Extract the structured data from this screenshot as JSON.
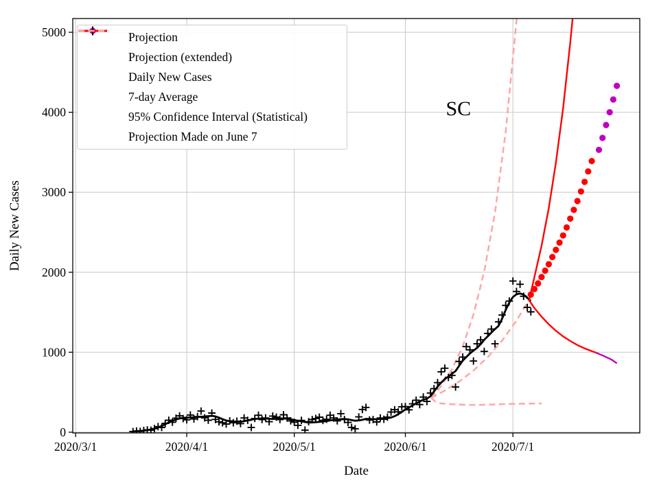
{
  "chart_data": {
    "type": "line",
    "annotation": {
      "text": "SC",
      "day": 106.8,
      "value": 4050
    },
    "x_axis": {
      "label": "Date",
      "min_day": -0.8,
      "max_day": 157.4,
      "day0_date": "2020-03-01",
      "ticks": [
        {
          "day": 0,
          "label": "2020/3/1"
        },
        {
          "day": 31,
          "label": "2020/4/1"
        },
        {
          "day": 61,
          "label": "2020/5/1"
        },
        {
          "day": 92,
          "label": "2020/6/1"
        },
        {
          "day": 122,
          "label": "2020/7/1"
        }
      ]
    },
    "y_axis": {
      "label": "Daily New Cases",
      "min": -9,
      "max": 5172,
      "ticks": [
        0,
        1000,
        2000,
        3000,
        4000,
        5000
      ]
    },
    "grid": true,
    "series": {
      "daily_new_cases": {
        "name": "Daily New Cases",
        "marker": "plus",
        "color": "#000000",
        "start_date": "2020-03-17",
        "start_day": 16,
        "values": [
          8,
          14,
          10,
          22,
          30,
          25,
          45,
          70,
          60,
          110,
          150,
          125,
          175,
          205,
          170,
          155,
          215,
          165,
          195,
          265,
          180,
          150,
          240,
          160,
          130,
          118,
          102,
          142,
          118,
          138,
          108,
          178,
          148,
          60,
          172,
          212,
          158,
          178,
          132,
          202,
          188,
          158,
          218,
          178,
          142,
          125,
          86,
          148,
          26,
          132,
          158,
          172,
          188,
          148,
          162,
          212,
          178,
          142,
          232,
          158,
          122,
          60,
          43,
          192,
          284,
          310,
          152,
          158,
          128,
          178,
          162,
          188,
          252,
          282,
          255,
          318,
          320,
          280,
          355,
          400,
          345,
          440,
          385,
          490,
          545,
          620,
          755,
          800,
          685,
          710,
          565,
          885,
          940,
          1070,
          1030,
          890,
          1105,
          1155,
          1010,
          1235,
          1290,
          1105,
          1380,
          1465,
          1585,
          1640,
          1890,
          1760,
          1850,
          1700,
          1560,
          1505
        ]
      },
      "avg_7day": {
        "name": "7-day Average",
        "style": "solid-line",
        "color": "#000000",
        "start_date": "2020-03-17",
        "start_day": 16,
        "values": [
          10,
          13,
          16,
          20,
          26,
          34,
          45,
          60,
          78,
          100,
          122,
          142,
          160,
          172,
          180,
          182,
          184,
          186,
          189,
          193,
          197,
          201,
          205,
          198,
          182,
          163,
          147,
          136,
          130,
          128,
          131,
          138,
          148,
          157,
          164,
          170,
          172,
          171,
          168,
          166,
          168,
          171,
          172,
          169,
          162,
          152,
          144,
          138,
          127,
          122,
          122,
          125,
          130,
          134,
          139,
          147,
          154,
          157,
          163,
          166,
          161,
          152,
          144,
          148,
          155,
          167,
          166,
          163,
          161,
          170,
          168,
          175,
          183,
          200,
          226,
          253,
          285,
          310,
          335,
          360,
          385,
          405,
          420,
          450,
          510,
          570,
          620,
          665,
          695,
          730,
          765,
          830,
          895,
          940,
          985,
          1020,
          1055,
          1100,
          1155,
          1200,
          1245,
          1290,
          1330,
          1420,
          1530,
          1620,
          1690,
          1725,
          1735,
          1720,
          1680,
          1640
        ]
      },
      "projection": {
        "name": "Projection",
        "marker": "dot",
        "color": "#ff0000",
        "start_date": "2020-07-06",
        "start_day": 127,
        "values": [
          1720,
          1790,
          1860,
          1940,
          2020,
          2100,
          2190,
          2280,
          2370,
          2460,
          2560,
          2670,
          2780,
          2890,
          3010,
          3130,
          3260,
          3390
        ]
      },
      "projection_extended": {
        "name": "Projection (extended)",
        "marker": "dot",
        "color": "#bf00bf",
        "start_date": "2020-07-25",
        "start_day": 146,
        "values": [
          3530,
          3680,
          3840,
          4000,
          4160,
          4330
        ]
      },
      "ci_upper": {
        "name": "95% Confidence Interval (Statistical) upper",
        "style": "solid-line",
        "color": "#ff0000",
        "points": [
          [
            126.5,
            1650
          ],
          [
            128,
            1940
          ],
          [
            130,
            2330
          ],
          [
            132,
            2800
          ],
          [
            134,
            3370
          ],
          [
            136,
            4050
          ],
          [
            138,
            4870
          ],
          [
            139.2,
            5420
          ]
        ]
      },
      "ci_lower": {
        "name": "95% Confidence Interval (Statistical) lower",
        "style": "solid-line",
        "color": "#ff0000",
        "points": [
          [
            126.5,
            1650
          ],
          [
            128,
            1552
          ],
          [
            130,
            1445
          ],
          [
            132,
            1350
          ],
          [
            134,
            1268
          ],
          [
            136,
            1198
          ],
          [
            138,
            1140
          ],
          [
            140,
            1090
          ],
          [
            142,
            1048
          ],
          [
            144,
            1014
          ],
          [
            145.2,
            995
          ]
        ]
      },
      "ci_lower_extended": {
        "name": "lower CI extension",
        "style": "solid-line",
        "color": "#bf00bf",
        "points": [
          [
            145.2,
            995
          ],
          [
            147.5,
            950
          ],
          [
            149.5,
            908
          ],
          [
            151,
            862
          ]
        ]
      },
      "june7_upper": {
        "name": "Projection Made on June 7 upper",
        "style": "dashed-line",
        "color": "#ffa6a6",
        "points": [
          [
            99.2,
            430
          ],
          [
            102,
            575
          ],
          [
            105,
            786
          ],
          [
            108,
            1075
          ],
          [
            111,
            1470
          ],
          [
            114,
            2010
          ],
          [
            117,
            2750
          ],
          [
            120,
            3760
          ],
          [
            123,
            5140
          ],
          [
            123.9,
            5600
          ]
        ]
      },
      "june7_central": {
        "name": "Projection Made on June 7 central",
        "style": "dashed-line",
        "color": "#ffa6a6",
        "points": [
          [
            99.2,
            430
          ],
          [
            103,
            520
          ],
          [
            107,
            633
          ],
          [
            111,
            771
          ],
          [
            115,
            940
          ],
          [
            119,
            1145
          ],
          [
            123,
            1395
          ],
          [
            126,
            1620
          ],
          [
            128,
            1790
          ],
          [
            130,
            1975
          ]
        ]
      },
      "june7_lower": {
        "name": "Projection Made on June 7 lower",
        "style": "dashed-line",
        "color": "#ffa6a6",
        "points": [
          [
            99.2,
            430
          ],
          [
            100.5,
            376
          ],
          [
            102,
            360
          ],
          [
            105,
            350
          ],
          [
            109,
            342
          ],
          [
            113,
            342
          ],
          [
            117,
            348
          ],
          [
            121,
            353
          ],
          [
            125,
            356
          ],
          [
            130,
            360
          ]
        ]
      }
    },
    "legend": {
      "position": "upper left",
      "items": [
        {
          "label": "Projection",
          "marker": "dot",
          "color": "#ff0000"
        },
        {
          "label": "Projection (extended)",
          "marker": "dot",
          "color": "#bf00bf"
        },
        {
          "label": "Daily New Cases",
          "marker": "plus",
          "color": "#000000"
        },
        {
          "label": "7-day Average",
          "marker": "line",
          "color": "#000000"
        },
        {
          "label": "95% Confidence Interval (Statistical)",
          "marker": "line",
          "color": "#ff0000"
        },
        {
          "label": "Projection Made on June 7",
          "marker": "dashed",
          "color": "#ffa6a6"
        }
      ]
    },
    "colors": {
      "grid": "#cccccc",
      "spine": "#000000",
      "background": "#ffffff"
    }
  }
}
